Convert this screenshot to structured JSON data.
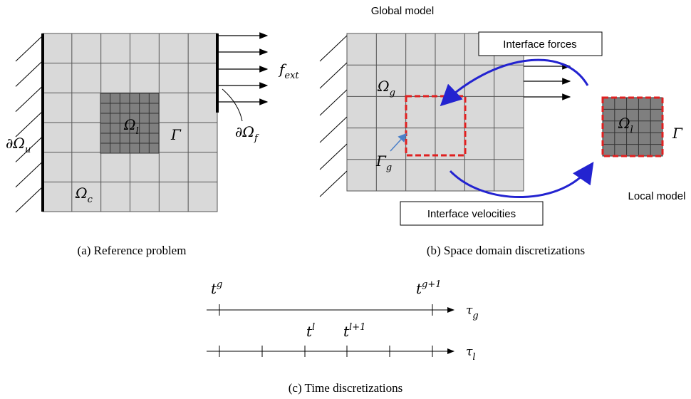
{
  "panel_a": {
    "boundary_u": {
      "base": "∂Ω",
      "sub": "u"
    },
    "local_domain": {
      "base": "Ω",
      "sub": "l"
    },
    "interface": "Γ",
    "complement": {
      "base": "Ω",
      "sub": "c"
    },
    "boundary_f": {
      "base": "∂Ω",
      "sub": "f"
    },
    "force": {
      "base": "f",
      "sub": "ext"
    },
    "caption": "(a) Reference problem"
  },
  "panel_b": {
    "global_label": "Global model",
    "forces_box": "Interface forces",
    "global_domain": {
      "base": "Ω",
      "sub": "g"
    },
    "global_interface": {
      "base": "Γ",
      "sub": "g"
    },
    "velocities_box": "Interface velocities",
    "local_domain": {
      "base": "Ω",
      "sub": "l"
    },
    "interface": "Γ",
    "local_label": "Local model",
    "caption": "(b) Space domain discretizations"
  },
  "panel_c": {
    "tg": {
      "base": "t",
      "sup": "g"
    },
    "tg1": {
      "base": "t",
      "sup": "g+1"
    },
    "tau_g": {
      "base": "τ",
      "sub": "g"
    },
    "tl": {
      "base": "t",
      "sup": "l"
    },
    "tl1": {
      "base": "t",
      "sup": "l+1"
    },
    "tau_l": {
      "base": "τ",
      "sub": "l"
    },
    "caption": "(c) Time discretizations"
  }
}
